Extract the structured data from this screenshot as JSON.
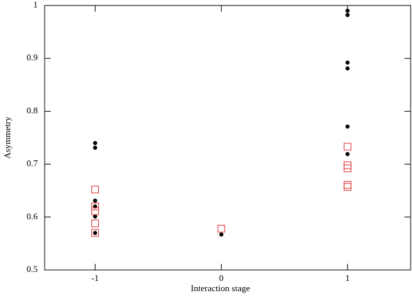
{
  "chart_data": {
    "type": "scatter",
    "xlabel": "Interaction stage",
    "ylabel": "Asymmetry",
    "xlim": [
      -1.4,
      1.5
    ],
    "ylim": [
      0.5,
      1
    ],
    "xticks": [
      -1,
      0,
      1
    ],
    "yticks": [
      0.5,
      0.6,
      0.7,
      0.8,
      0.9,
      1
    ],
    "series": [
      {
        "color": "#000000",
        "marker": "circle",
        "x": [
          -1,
          -1,
          -1,
          -1,
          -1,
          -1,
          0,
          1,
          1,
          1,
          1,
          1,
          1
        ],
        "values": [
          0.74,
          0.731,
          0.631,
          0.62,
          0.601,
          0.57,
          0.567,
          0.99,
          0.982,
          0.892,
          0.881,
          0.771,
          0.719
        ]
      },
      {
        "color": "#e03030",
        "marker": "square",
        "x": [
          -1,
          -1,
          -1,
          -1,
          -1,
          0,
          1,
          1,
          1,
          1,
          1
        ],
        "values": [
          0.652,
          0.62,
          0.611,
          0.588,
          0.57,
          0.578,
          0.733,
          0.698,
          0.692,
          0.661,
          0.657
        ]
      }
    ]
  }
}
